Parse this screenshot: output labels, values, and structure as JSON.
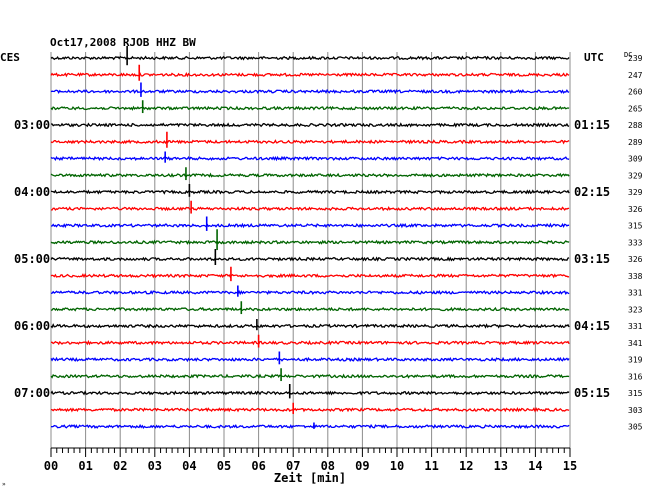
{
  "chart_data": {
    "type": "line",
    "title": "Oct17,2008   RJOB HHZ BW",
    "left_header": "CES",
    "right_header": "UTC",
    "dc_header": "DC",
    "xlabel": "Zeit [min]",
    "xlim": [
      0,
      15
    ],
    "x_ticks": [
      "00",
      "01",
      "02",
      "03",
      "04",
      "05",
      "06",
      "07",
      "08",
      "09",
      "10",
      "11",
      "12",
      "13",
      "14",
      "15"
    ],
    "grid": true,
    "trace_colors": [
      "#000000",
      "#ff0000",
      "#0000ff",
      "#006400"
    ],
    "left_time_labels": [
      {
        "row": 4,
        "text": "03:00"
      },
      {
        "row": 8,
        "text": "04:00"
      },
      {
        "row": 12,
        "text": "05:00"
      },
      {
        "row": 16,
        "text": "06:00"
      },
      {
        "row": 20,
        "text": "07:00"
      }
    ],
    "right_time_labels": [
      {
        "row": 4,
        "text": "01:15"
      },
      {
        "row": 8,
        "text": "02:15"
      },
      {
        "row": 12,
        "text": "03:15"
      },
      {
        "row": 16,
        "text": "04:15"
      },
      {
        "row": 20,
        "text": "05:15"
      }
    ],
    "dc_offsets": [
      "239",
      "247",
      "260",
      "265",
      "288",
      "289",
      "309",
      "329",
      "329",
      "326",
      "315",
      "333",
      "326",
      "338",
      "331",
      "323",
      "331",
      "341",
      "319",
      "316",
      "315",
      "303",
      "305"
    ],
    "spikes": [
      {
        "row": 0,
        "x": 2.2,
        "amp": 12
      },
      {
        "row": 1,
        "x": 2.55,
        "amp": 10
      },
      {
        "row": 2,
        "x": 2.6,
        "amp": 9
      },
      {
        "row": 3,
        "x": 2.65,
        "amp": 8
      },
      {
        "row": 5,
        "x": 3.35,
        "amp": 10
      },
      {
        "row": 6,
        "x": 3.3,
        "amp": 7
      },
      {
        "row": 7,
        "x": 3.9,
        "amp": 8
      },
      {
        "row": 8,
        "x": 4.0,
        "amp": 8
      },
      {
        "row": 9,
        "x": 4.05,
        "amp": 8
      },
      {
        "row": 10,
        "x": 4.5,
        "amp": 9
      },
      {
        "row": 11,
        "x": 4.8,
        "amp": 13
      },
      {
        "row": 12,
        "x": 4.75,
        "amp": 10
      },
      {
        "row": 13,
        "x": 5.2,
        "amp": 9
      },
      {
        "row": 14,
        "x": 5.4,
        "amp": 7
      },
      {
        "row": 15,
        "x": 5.5,
        "amp": 8
      },
      {
        "row": 16,
        "x": 5.95,
        "amp": 7
      },
      {
        "row": 17,
        "x": 6.0,
        "amp": 8
      },
      {
        "row": 18,
        "x": 6.6,
        "amp": 8
      },
      {
        "row": 19,
        "x": 6.65,
        "amp": 8
      },
      {
        "row": 20,
        "x": 6.9,
        "amp": 9
      },
      {
        "row": 21,
        "x": 7.0,
        "amp": 7
      },
      {
        "row": 22,
        "x": 7.6,
        "amp": 4
      }
    ],
    "corner_mark": "»"
  }
}
